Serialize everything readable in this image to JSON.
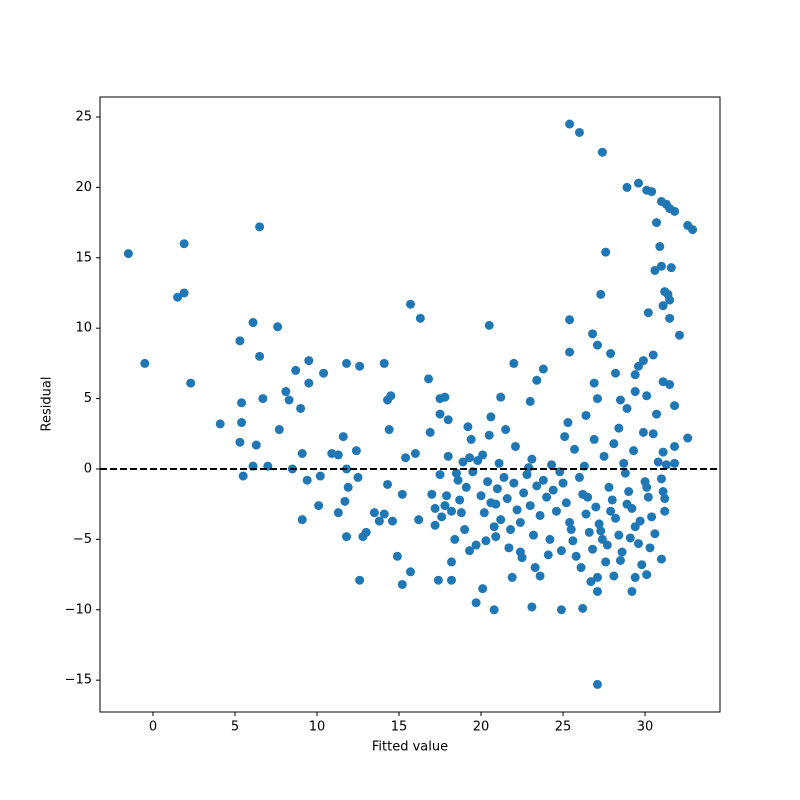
{
  "chart_data": {
    "type": "scatter",
    "xlabel": "Fitted value",
    "ylabel": "Residual",
    "color": "#1f77b4",
    "xlim": [
      -3.23,
      34.57
    ],
    "ylim": [
      -17.26,
      26.42
    ],
    "xticks": [
      0,
      5,
      10,
      15,
      20,
      25,
      30
    ],
    "yticks": [
      {
        "value": -15,
        "label": "−15"
      },
      {
        "value": -10,
        "label": "−10"
      },
      {
        "value": -5,
        "label": "−5"
      },
      0,
      5,
      10,
      15,
      20,
      25
    ],
    "reference_line": {
      "y": 0,
      "style": "dashed",
      "color": "#000000"
    },
    "x": [
      -1.5,
      -0.5,
      1.5,
      1.9,
      1.9,
      2.3,
      4.1,
      5.3,
      5.4,
      5.4,
      5.3,
      5.5,
      6.1,
      6.5,
      6.5,
      6.3,
      6.1,
      6.7,
      7.0,
      7.6,
      7.7,
      8.1,
      8.3,
      8.7,
      8.5,
      9.0,
      9.5,
      9.5,
      9.1,
      9.4,
      9.1,
      10.4,
      10.1,
      10.2,
      10.9,
      11.3,
      11.6,
      11.8,
      12.6,
      11.8,
      11.9,
      11.7,
      11.3,
      11.8,
      12.4,
      12.5,
      12.8,
      12.6,
      13.0,
      13.5,
      13.8,
      14.1,
      14.3,
      14.5,
      14.4,
      14.3,
      14.1,
      14.6,
      14.9,
      15.2,
      15.7,
      15.7,
      16.3,
      15.4,
      16.0,
      15.2,
      16.2,
      16.8,
      16.9,
      17.0,
      17.2,
      17.4,
      17.5,
      17.5,
      17.8,
      18.0,
      17.8,
      18.2,
      18.2,
      18.4,
      18.6,
      18.8,
      19.2,
      19.4,
      19.3,
      19.7,
      19.7,
      20.1,
      20.5,
      20.6,
      20.5,
      20.8,
      20.9,
      21.2,
      21.5,
      22.0,
      21.9,
      22.4,
      22.9,
      23.0,
      23.1,
      23.4,
      23.8,
      23.6,
      24.9,
      25.4,
      26.0,
      27.4,
      27.6,
      27.3,
      26.8,
      27.1,
      25.4,
      25.4,
      27.9,
      28.9,
      29.6,
      30.1,
      30.4,
      31.0,
      31.3,
      31.5,
      31.8,
      32.6,
      32.9,
      30.7,
      30.9,
      31.0,
      30.6,
      31.6,
      31.2,
      31.4,
      31.5,
      31.1,
      30.2,
      31.5,
      32.1,
      30.5,
      29.9,
      29.6,
      29.4,
      28.2,
      26.9,
      31.1,
      31.5,
      31.8,
      29.4,
      30.1,
      30.7,
      32.6,
      31.1,
      31.8,
      26.4,
      25.3,
      27.1,
      28.5,
      28.9,
      28.4,
      27.1,
      26.2,
      27.1,
      29.2,
      31.2,
      31.0,
      30.1,
      29.4,
      28.1,
      27.1,
      31.1,
      18.5,
      18.9,
      19.1,
      19.5,
      19.8,
      20.0,
      20.2,
      20.4,
      20.6,
      20.8,
      21.0,
      21.2,
      21.4,
      21.6,
      21.8,
      22.0,
      22.2,
      22.4,
      22.6,
      22.8,
      23.0,
      23.2,
      23.4,
      23.6,
      23.8,
      24.0,
      24.2,
      24.4,
      24.6,
      24.8,
      17.2,
      17.6,
      17.9,
      18.2,
      18.7,
      19.0,
      19.3,
      20.3,
      20.9,
      21.7,
      22.5,
      23.3,
      24.1,
      17.5,
      18.0,
      20.1,
      21.1,
      22.1,
      23.1,
      24.3,
      25.0,
      25.2,
      25.4,
      25.6,
      25.8,
      26.0,
      26.2,
      26.4,
      26.6,
      26.8,
      27.0,
      27.2,
      27.4,
      27.6,
      27.8,
      28.0,
      28.2,
      28.4,
      28.6,
      28.8,
      29.0,
      29.2,
      29.4,
      29.6,
      29.8,
      30.0,
      30.2,
      30.4,
      30.6,
      30.8,
      31.0,
      25.1,
      25.7,
      26.3,
      26.9,
      27.5,
      28.1,
      28.7,
      29.3,
      29.9,
      30.5,
      31.3,
      31.8,
      26.1,
      26.7,
      27.3,
      27.9,
      28.5,
      29.1,
      29.7,
      30.3,
      25.5,
      24.9,
      26.5,
      27.7,
      28.9,
      30.1,
      31.2
    ],
    "values": [
      15.3,
      7.5,
      12.2,
      12.5,
      16.0,
      6.1,
      3.2,
      9.1,
      4.7,
      3.3,
      1.9,
      -0.5,
      10.4,
      17.2,
      8.0,
      1.7,
      0.2,
      5.0,
      0.2,
      10.1,
      2.8,
      5.5,
      4.9,
      7.0,
      0.0,
      4.3,
      7.7,
      6.1,
      1.1,
      -0.8,
      -3.6,
      6.8,
      -2.6,
      -0.5,
      1.1,
      1.0,
      2.3,
      7.5,
      7.3,
      0.0,
      -1.3,
      -2.3,
      -3.1,
      -4.8,
      1.3,
      -0.6,
      -4.8,
      -7.9,
      -4.5,
      -3.1,
      -3.7,
      7.5,
      4.9,
      5.2,
      2.8,
      -1.1,
      -3.2,
      -3.7,
      -6.2,
      -8.2,
      -7.3,
      11.7,
      10.7,
      0.8,
      1.1,
      -1.8,
      -3.6,
      6.4,
      2.6,
      -1.8,
      -4.0,
      -7.9,
      5.0,
      3.9,
      5.1,
      3.5,
      -2.6,
      -7.9,
      -6.6,
      -5.0,
      -0.8,
      -3.1,
      3.0,
      2.1,
      0.8,
      -5.4,
      -9.5,
      -8.5,
      10.2,
      3.7,
      2.4,
      -10.0,
      -2.5,
      5.1,
      2.8,
      7.5,
      -7.7,
      -5.9,
      0.1,
      4.8,
      -9.8,
      6.3,
      7.1,
      -7.6,
      -10.0,
      24.5,
      23.9,
      22.5,
      15.4,
      12.4,
      9.6,
      8.8,
      10.6,
      8.3,
      8.2,
      20.0,
      20.3,
      19.8,
      19.7,
      19.0,
      18.8,
      18.5,
      18.3,
      17.3,
      17.0,
      17.5,
      15.8,
      14.4,
      14.1,
      14.3,
      12.6,
      12.4,
      12.0,
      11.6,
      11.1,
      10.7,
      9.5,
      8.1,
      7.7,
      7.3,
      6.7,
      6.8,
      6.1,
      6.2,
      6.0,
      4.5,
      5.5,
      5.2,
      3.9,
      2.2,
      1.2,
      1.6,
      3.8,
      3.3,
      5.0,
      4.9,
      4.3,
      2.9,
      -15.3,
      -9.9,
      -8.7,
      -8.7,
      -3.0,
      -6.4,
      -7.5,
      -7.7,
      -7.6,
      -7.7,
      -1.6,
      -0.3,
      0.5,
      -1.3,
      -0.2,
      0.6,
      -1.9,
      -3.1,
      -0.9,
      -2.4,
      -4.1,
      -1.4,
      -3.6,
      -0.6,
      -2.1,
      -4.3,
      -1.0,
      -2.9,
      -3.8,
      -1.7,
      -0.4,
      -2.6,
      -4.7,
      -1.2,
      -3.3,
      -0.8,
      -2.0,
      -5.0,
      -1.5,
      -3.0,
      -0.2,
      -2.8,
      -3.4,
      -1.9,
      -3.0,
      -2.2,
      -4.3,
      -5.8,
      -5.1,
      -4.8,
      -5.6,
      -6.3,
      -7.0,
      -6.1,
      -0.4,
      0.9,
      1.0,
      0.4,
      1.6,
      0.7,
      0.3,
      -1.0,
      -2.4,
      -3.8,
      -5.1,
      -6.2,
      -0.6,
      -1.8,
      -3.2,
      -4.5,
      -5.7,
      -2.7,
      -3.9,
      -5.0,
      -6.6,
      -1.3,
      -2.2,
      -3.5,
      -4.7,
      -5.9,
      -0.3,
      -1.6,
      -2.8,
      -4.1,
      -5.3,
      -6.8,
      -0.9,
      -2.0,
      -3.4,
      -4.6,
      0.5,
      -0.7,
      2.3,
      1.4,
      0.2,
      2.1,
      0.9,
      1.8,
      0.4,
      1.3,
      2.6,
      2.5,
      0.3,
      0.4,
      -7.0,
      -8.0,
      -4.4,
      -3.0,
      -6.5,
      -4.9,
      -3.7,
      -5.6,
      -4.3,
      -5.8,
      -2.0,
      -5.4,
      -2.5,
      -1.3,
      -2.1
    ]
  }
}
